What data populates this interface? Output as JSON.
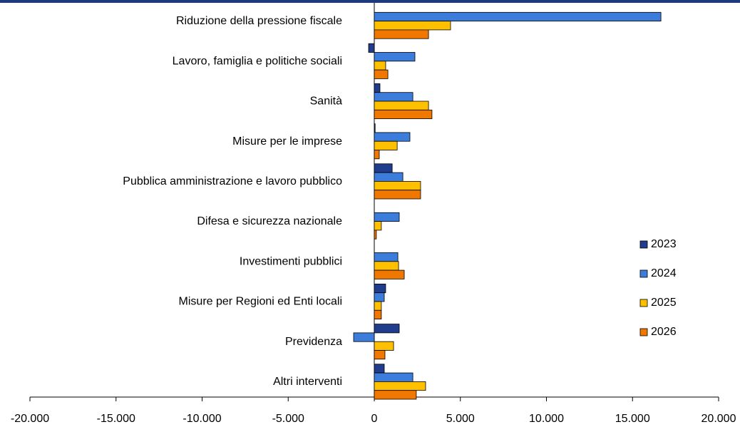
{
  "chart_data": {
    "type": "hbar",
    "categories": [
      "Riduzione della pressione fiscale",
      "Lavoro, famiglia e politiche sociali",
      "Sanità",
      "Misure per le imprese",
      "Pubblica amministrazione e lavoro pubblico",
      "Difesa e sicurezza nazionale",
      "Investimenti pubblici",
      "Misure per Regioni ed Enti locali",
      "Previdenza",
      "Altri interventi"
    ],
    "series": [
      {
        "name": "2023",
        "color": "#203c8c",
        "values": [
          0,
          -330,
          330,
          50,
          1040,
          0,
          0,
          660,
          1450,
          580
        ]
      },
      {
        "name": "2024",
        "color": "#3c7ddc",
        "values": [
          16650,
          2360,
          2240,
          2070,
          1660,
          1450,
          1370,
          580,
          -1200,
          2240
        ]
      },
      {
        "name": "2025",
        "color": "#ffc000",
        "values": [
          4430,
          660,
          3150,
          1330,
          2690,
          410,
          1410,
          410,
          1120,
          2980
        ]
      },
      {
        "name": "2026",
        "color": "#f07800",
        "values": [
          3150,
          790,
          3350,
          290,
          2690,
          120,
          1740,
          410,
          620,
          2440
        ]
      }
    ],
    "xlim": [
      -20000,
      20000
    ],
    "xticks": [
      {
        "value": -20000,
        "label": "-20.000"
      },
      {
        "value": -15000,
        "label": "-15.000"
      },
      {
        "value": -10000,
        "label": "-10.000"
      },
      {
        "value": -5000,
        "label": "-5.000"
      },
      0,
      {
        "value": 5000,
        "label": "5.000"
      },
      {
        "value": 10000,
        "label": "10.000"
      },
      {
        "value": 15000,
        "label": "15.000"
      },
      {
        "value": 20000,
        "label": "20.000"
      }
    ],
    "legend": "right"
  }
}
